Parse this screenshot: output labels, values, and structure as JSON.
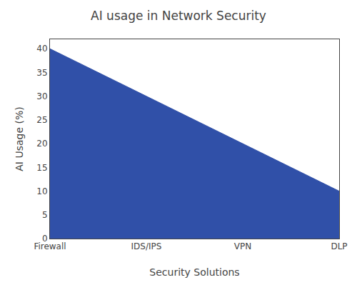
{
  "chart_data": {
    "type": "area",
    "title": "AI usage in Network Security",
    "xlabel": "Security Solutions",
    "ylabel": "AI Usage (%)",
    "categories": [
      "Firewall",
      "IDS/IPS",
      "VPN",
      "DLP"
    ],
    "values": [
      40,
      30,
      20,
      10
    ],
    "color": "#3050a8",
    "ylim": [
      0,
      42
    ],
    "yticks": [
      0,
      5,
      10,
      15,
      20,
      25,
      30,
      35,
      40
    ],
    "grid": false
  }
}
